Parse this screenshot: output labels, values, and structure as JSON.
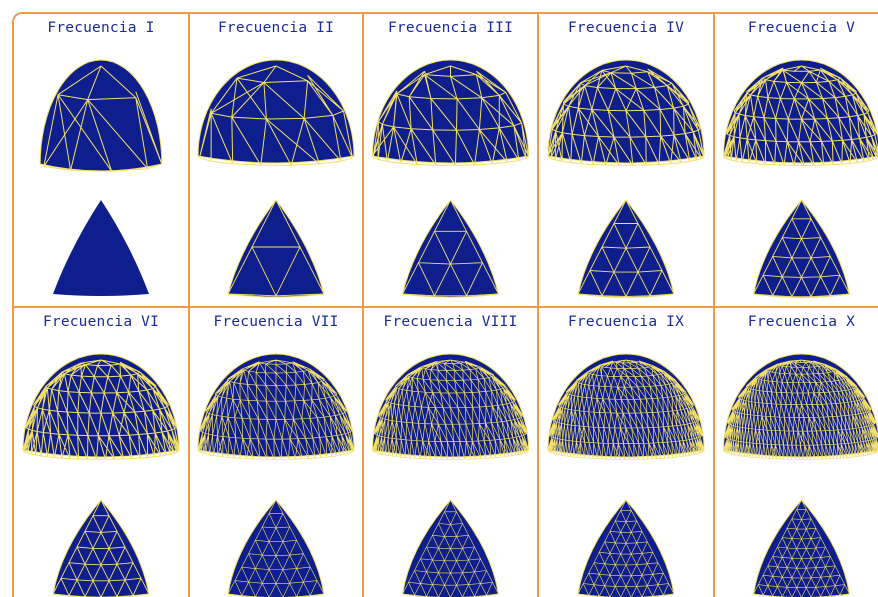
{
  "colors": {
    "border": "#f29a4a",
    "title": "#1c2a9a",
    "face": "#0e1e8c",
    "edge": "#f2e06a"
  },
  "cells": [
    {
      "title": "Frecuencia I",
      "freq": 1
    },
    {
      "title": "Frecuencia II",
      "freq": 2
    },
    {
      "title": "Frecuencia III",
      "freq": 3
    },
    {
      "title": "Frecuencia IV",
      "freq": 4
    },
    {
      "title": "Frecuencia V",
      "freq": 5
    },
    {
      "title": "Frecuencia VI",
      "freq": 6
    },
    {
      "title": "Frecuencia VII",
      "freq": 7
    },
    {
      "title": "Frecuencia VIII",
      "freq": 8
    },
    {
      "title": "Frecuencia IX",
      "freq": 9
    },
    {
      "title": "Frecuencia X",
      "freq": 10
    }
  ]
}
